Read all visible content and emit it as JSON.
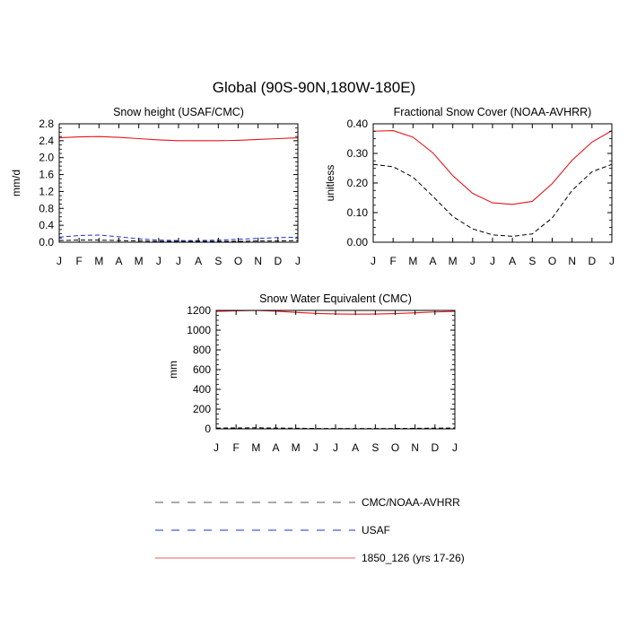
{
  "figure": {
    "title": "Global (90S-90N,180W-180E)"
  },
  "chart_data": [
    {
      "type": "line",
      "title": "Snow height (USAF/CMC)",
      "ylabel": "mm/d",
      "xlabel": "",
      "x": [
        "J",
        "F",
        "M",
        "A",
        "M",
        "J",
        "J",
        "A",
        "S",
        "O",
        "N",
        "D",
        "J"
      ],
      "ylim": [
        0,
        2.8
      ],
      "yticks": [
        "0.0",
        "0.4",
        "0.8",
        "1.2",
        "1.6",
        "2.0",
        "2.4",
        "2.8"
      ],
      "grid": false,
      "series": [
        {
          "name": "1850_126 (yrs 17-26)",
          "color": "#e8161b",
          "dash": "solid",
          "values": [
            2.47,
            2.49,
            2.5,
            2.48,
            2.45,
            2.42,
            2.4,
            2.4,
            2.4,
            2.41,
            2.43,
            2.45,
            2.47
          ]
        },
        {
          "name": "USAF",
          "color": "#1b2fd8",
          "dash": "dashed",
          "values": [
            0.12,
            0.16,
            0.17,
            0.13,
            0.08,
            0.05,
            0.04,
            0.04,
            0.05,
            0.07,
            0.09,
            0.11,
            0.12
          ]
        },
        {
          "name": "CMC/NOAA-AVHRR",
          "color": "#000000",
          "dash": "dashed",
          "values": [
            0.04,
            0.05,
            0.05,
            0.04,
            0.03,
            0.02,
            0.02,
            0.02,
            0.02,
            0.02,
            0.03,
            0.03,
            0.04
          ]
        }
      ]
    },
    {
      "type": "line",
      "title": "Fractional Snow Cover (NOAA-AVHRR)",
      "ylabel": "unitless",
      "xlabel": "",
      "x": [
        "J",
        "F",
        "M",
        "A",
        "M",
        "J",
        "J",
        "A",
        "S",
        "O",
        "N",
        "D",
        "J"
      ],
      "ylim": [
        0,
        0.4
      ],
      "yticks": [
        "0.00",
        "0.10",
        "0.20",
        "0.30",
        "0.40"
      ],
      "grid": false,
      "series": [
        {
          "name": "1850_126 (yrs 17-26)",
          "color": "#e8161b",
          "dash": "solid",
          "values": [
            0.375,
            0.377,
            0.355,
            0.302,
            0.225,
            0.165,
            0.133,
            0.128,
            0.138,
            0.198,
            0.277,
            0.338,
            0.377
          ]
        },
        {
          "name": "CMC/NOAA-AVHRR",
          "color": "#000000",
          "dash": "dashed",
          "values": [
            0.263,
            0.255,
            0.22,
            0.155,
            0.087,
            0.045,
            0.025,
            0.02,
            0.028,
            0.082,
            0.175,
            0.238,
            0.263
          ]
        }
      ]
    },
    {
      "type": "line",
      "title": "Snow Water Equivalent (CMC)",
      "ylabel": "mm",
      "xlabel": "",
      "x": [
        "J",
        "F",
        "M",
        "A",
        "M",
        "J",
        "J",
        "A",
        "S",
        "O",
        "N",
        "D",
        "J"
      ],
      "ylim": [
        0,
        1200
      ],
      "yticks": [
        "0",
        "200",
        "400",
        "600",
        "800",
        "1000",
        "1200"
      ],
      "grid": false,
      "series": [
        {
          "name": "1850_126 (yrs 17-26)",
          "color": "#e8161b",
          "dash": "solid",
          "values": [
            1190,
            1196,
            1200,
            1193,
            1180,
            1170,
            1164,
            1162,
            1163,
            1168,
            1176,
            1184,
            1190
          ]
        },
        {
          "name": "CMC/NOAA-AVHRR",
          "color": "#000000",
          "dash": "dashed",
          "values": [
            8,
            9,
            10,
            8,
            6,
            4,
            3,
            3,
            3,
            4,
            5,
            7,
            8
          ]
        }
      ]
    }
  ],
  "legend": [
    {
      "label": "CMC/NOAA-AVHRR",
      "color": "#555555",
      "dash": "dashed"
    },
    {
      "label": "USAF",
      "color": "#1b2fd8",
      "dash": "dashed"
    },
    {
      "label": "1850_126 (yrs 17-26)",
      "color": "#e8161b",
      "dash": "solid"
    }
  ]
}
